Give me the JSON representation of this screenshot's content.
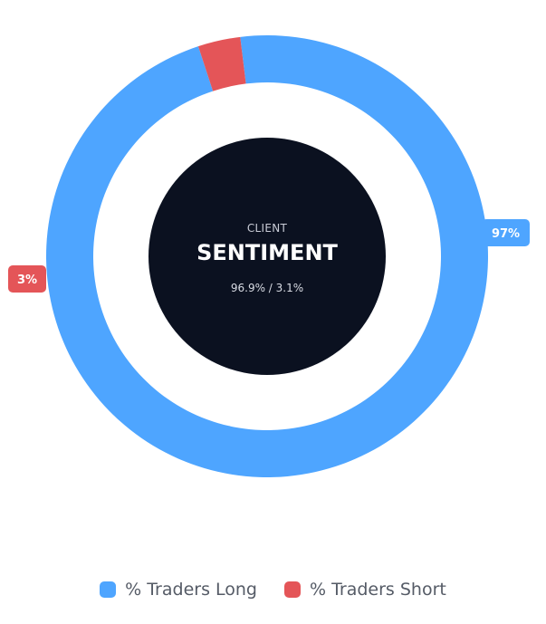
{
  "chart_data": {
    "type": "pie",
    "style": "donut",
    "categories": [
      "% Traders Long",
      "% Traders Short"
    ],
    "values": [
      96.9,
      3.1
    ],
    "data_labels": [
      "97%",
      "3%"
    ],
    "colors": [
      "#4ea5ff",
      "#e45558"
    ],
    "center": {
      "caption": "CLIENT",
      "title": "SENTIMENT",
      "ratio": "96.9% / 3.1%"
    },
    "legend_position": "bottom"
  }
}
